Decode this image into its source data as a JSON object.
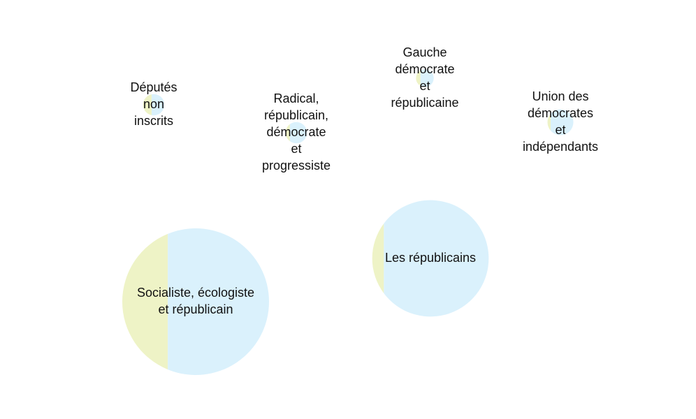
{
  "chart_data": {
    "type": "bubble-pie",
    "colors": {
      "left_slice": "#eef3c6",
      "right_slice": "#daf1fc"
    },
    "groups": [
      {
        "id": "socialiste",
        "label_lines": [
          "Socialiste, écologiste",
          "et républicain"
        ],
        "relative_size": 1.0,
        "left_fraction": 0.31
      },
      {
        "id": "republicains",
        "label_lines": [
          "Les républicains"
        ],
        "relative_size": 0.63,
        "left_fraction": 0.1
      },
      {
        "id": "non-inscrits",
        "label_lines": [
          "Députés",
          "non",
          "inscrits"
        ],
        "relative_size": 0.0211,
        "left_fraction": 0.4
      },
      {
        "id": "radical",
        "label_lines": [
          "Radical,",
          "républicain,",
          "démocrate",
          "et",
          "progressiste"
        ],
        "relative_size": 0.0211,
        "left_fraction": 0.2
      },
      {
        "id": "gauche-democrate",
        "label_lines": [
          "Gauche",
          "démocrate",
          "et",
          "républicaine"
        ],
        "relative_size": 0.0145,
        "left_fraction": 0.25
      },
      {
        "id": "udi",
        "label_lines": [
          "Union des",
          "démocrates",
          "et",
          "indépendants"
        ],
        "relative_size": 0.0311,
        "left_fraction": 0.12
      }
    ]
  }
}
